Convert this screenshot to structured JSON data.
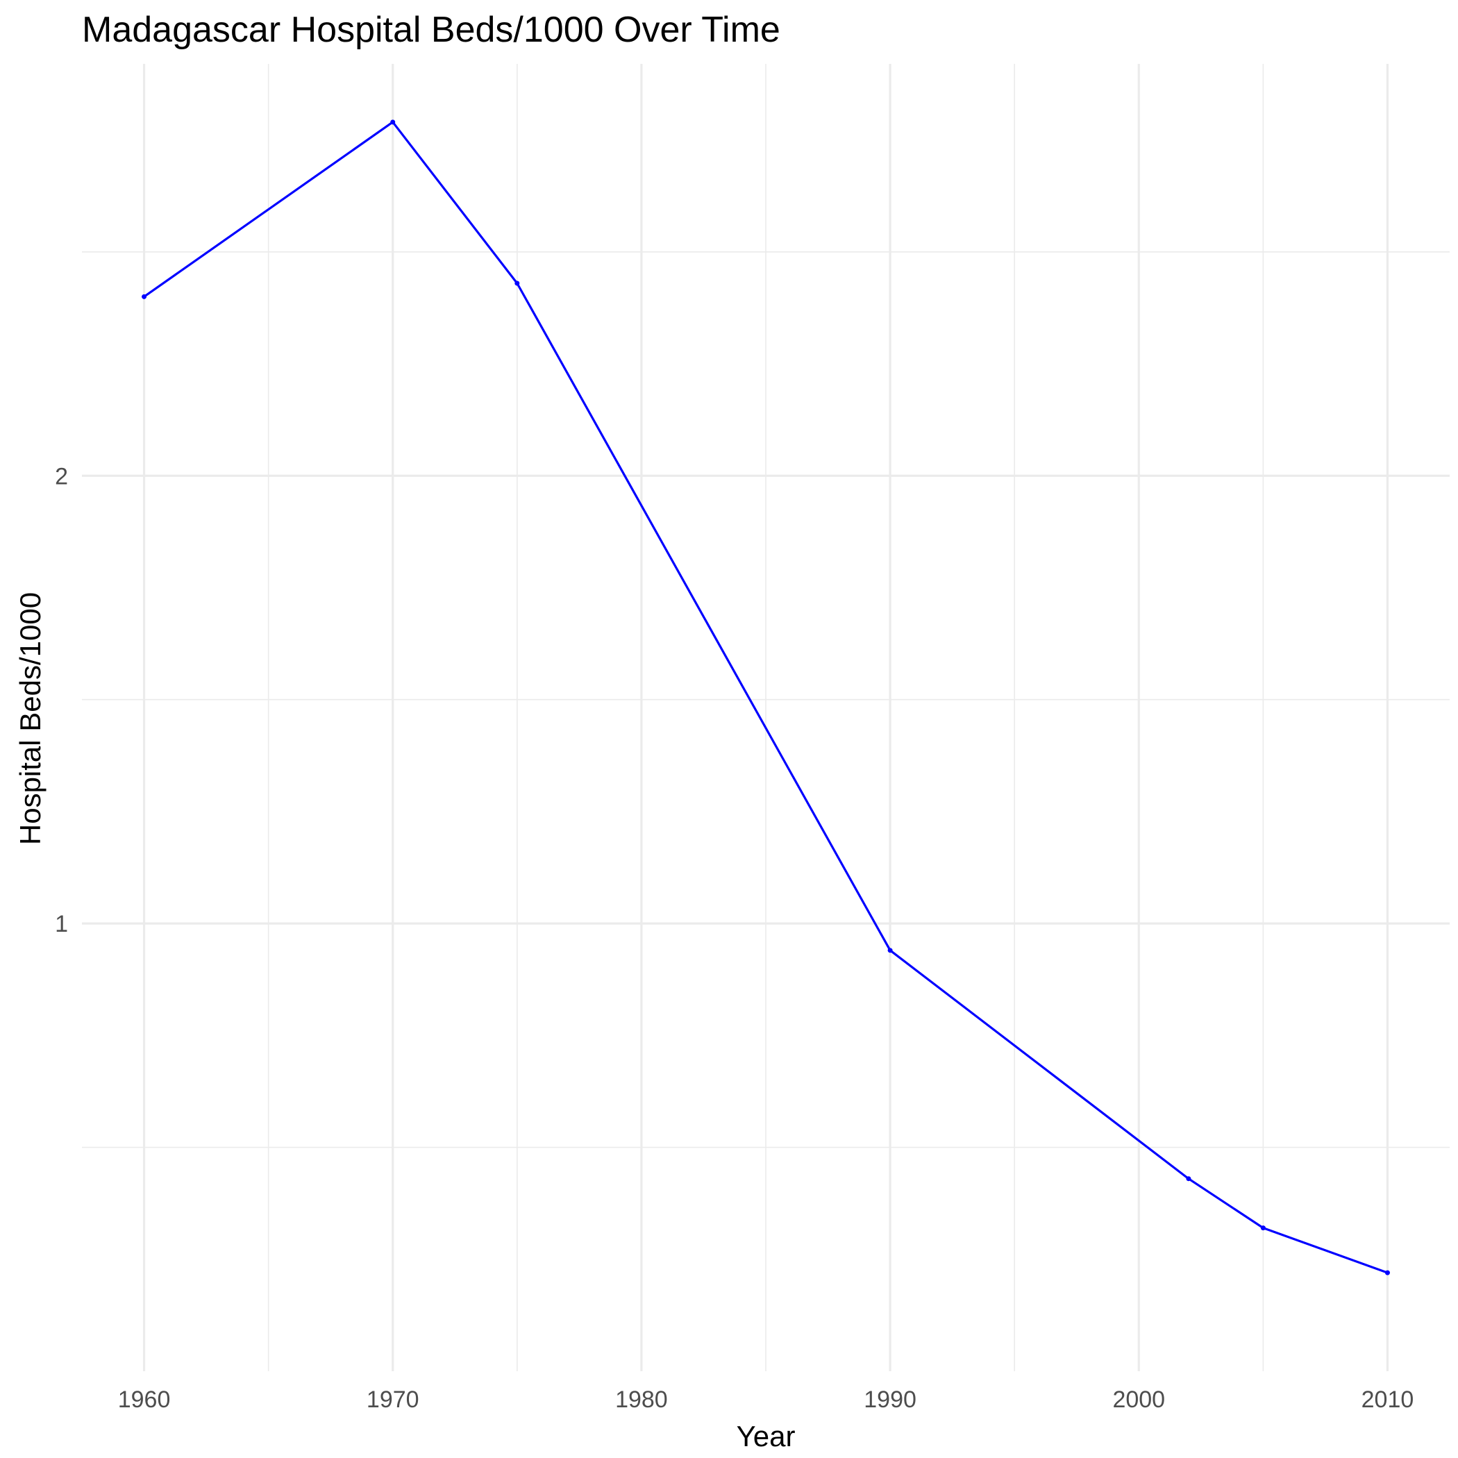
{
  "chart_data": {
    "type": "line",
    "title": "Madagascar Hospital Beds/1000 Over Time",
    "xlabel": "Year",
    "ylabel": "Hospital Beds/1000",
    "x": [
      1960,
      1970,
      1975,
      1990,
      2002,
      2005,
      2010
    ],
    "series": [
      {
        "values": [
          2.4,
          2.79,
          2.43,
          0.94,
          0.43,
          0.32,
          0.22
        ]
      }
    ],
    "xlim": [
      1957.5,
      2012.5
    ],
    "ylim": [
      0.0,
      2.92
    ],
    "x_ticks": [
      1960,
      1970,
      1980,
      1990,
      2000,
      2010
    ],
    "x_tick_labels": [
      "1960",
      "1970",
      "1980",
      "1990",
      "2000",
      "2010"
    ],
    "x_minor_ticks": [
      1965,
      1975,
      1985,
      1995,
      2005
    ],
    "y_ticks": [
      1,
      2
    ],
    "y_tick_labels": [
      "1",
      "2"
    ],
    "y_minor_ticks": [
      0.5,
      1.5,
      2.5
    ],
    "grid": true,
    "legend": "none",
    "colors": {
      "line": "#0000ff",
      "grid": "#ebebeb",
      "tick_text": "#4d4d4d",
      "text": "#000000"
    }
  }
}
